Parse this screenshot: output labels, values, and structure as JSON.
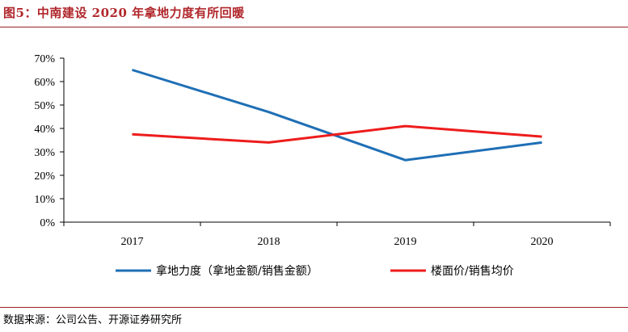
{
  "header": {
    "title": "图5：中南建设 2020 年拿地力度有所回暖"
  },
  "footer": {
    "source": "数据来源：公司公告、开源证券研究所"
  },
  "chart_data": {
    "type": "line",
    "title": "",
    "xlabel": "",
    "ylabel": "",
    "categories": [
      "2017",
      "2018",
      "2019",
      "2020"
    ],
    "y_unit": "%",
    "ylim": [
      0,
      70
    ],
    "yticks": [
      0,
      10,
      20,
      30,
      40,
      50,
      60,
      70
    ],
    "ytick_labels": [
      "0%",
      "10%",
      "20%",
      "30%",
      "40%",
      "50%",
      "60%",
      "70%"
    ],
    "grid": false,
    "legend_position": "bottom",
    "series": [
      {
        "name": "拿地力度（拿地金额/销售金额）",
        "color": "#1f6fb5",
        "values": [
          65,
          47,
          26.5,
          34
        ]
      },
      {
        "name": "楼面价/销售均价",
        "color": "#ee1c1c",
        "values": [
          37.5,
          34,
          41,
          36.5
        ]
      }
    ]
  }
}
